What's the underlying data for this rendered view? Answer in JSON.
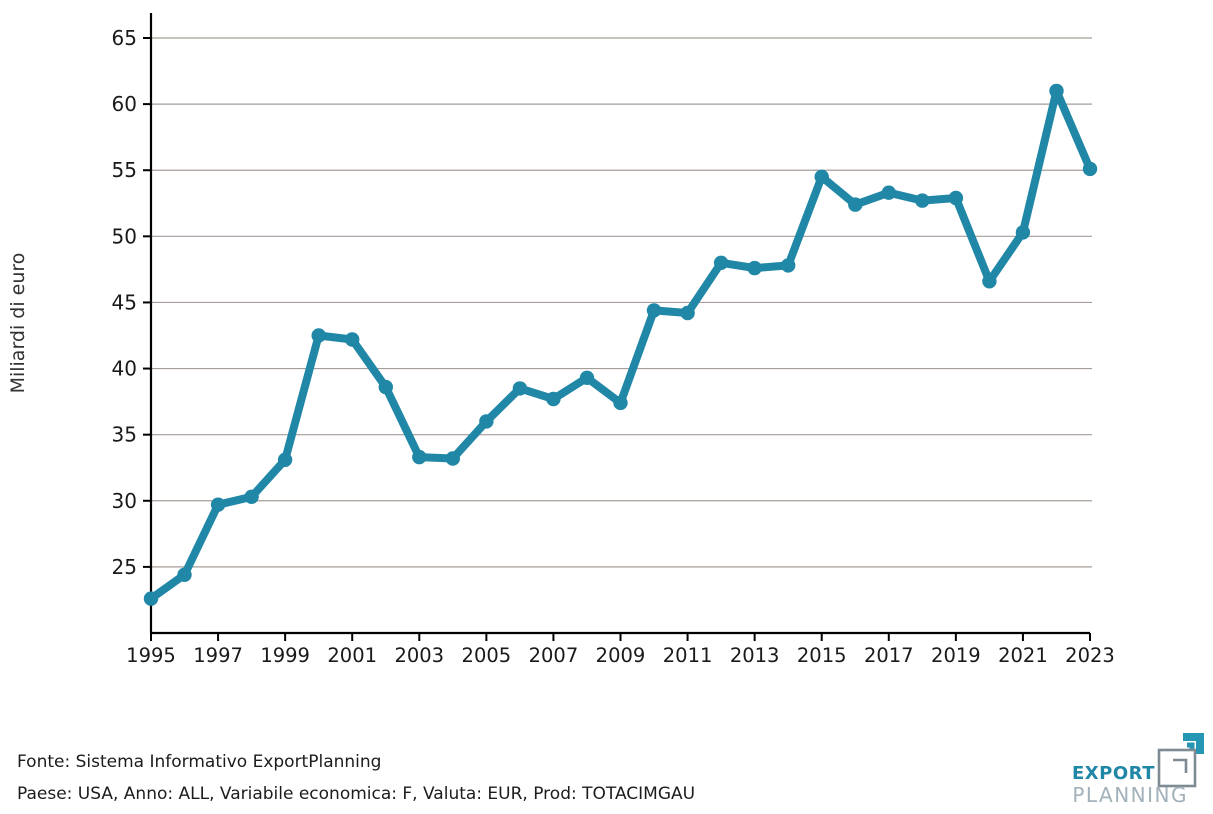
{
  "chart_data": {
    "type": "line",
    "title": "",
    "xlabel": "",
    "ylabel": "Miliardi di euro",
    "x": [
      1995,
      1996,
      1997,
      1998,
      1999,
      2000,
      2001,
      2002,
      2003,
      2004,
      2005,
      2006,
      2007,
      2008,
      2009,
      2010,
      2011,
      2012,
      2013,
      2014,
      2015,
      2016,
      2017,
      2018,
      2019,
      2020,
      2021,
      2022,
      2023
    ],
    "values": [
      22.6,
      24.4,
      29.7,
      30.3,
      33.1,
      42.5,
      42.2,
      38.6,
      33.3,
      33.2,
      36.0,
      38.5,
      37.7,
      39.3,
      37.4,
      44.4,
      44.2,
      48.0,
      47.6,
      47.8,
      54.5,
      52.4,
      53.3,
      52.7,
      52.9,
      46.6,
      50.3,
      61.0,
      55.1
    ],
    "ylim": [
      20,
      66.5
    ],
    "yticks": [
      25,
      30,
      35,
      40,
      45,
      50,
      55,
      60,
      65
    ],
    "xticks": [
      1995,
      1997,
      1999,
      2001,
      2003,
      2005,
      2007,
      2009,
      2011,
      2013,
      2015,
      2017,
      2019,
      2021,
      2023
    ],
    "grid": true,
    "legend": "none",
    "line_color": "#2187a7",
    "grid_color": "#a59d98",
    "axis_color": "#000000",
    "tick_label_color": "#1a1a1a"
  },
  "footer": {
    "source_line": "Fonte: Sistema Informativo ExportPlanning",
    "params_line": "Paese: USA, Anno: ALL, Variabile economica: F, Valuta: EUR, Prod: TOTACIMGAU"
  },
  "logo": {
    "line1": "EXPORT",
    "line2": "PLANNING",
    "accent_color": "#2187a7",
    "icon_teal_color": "#2596b4",
    "gray_color": "#a2b1ba",
    "icon_gray_color": "#7e8b93"
  }
}
